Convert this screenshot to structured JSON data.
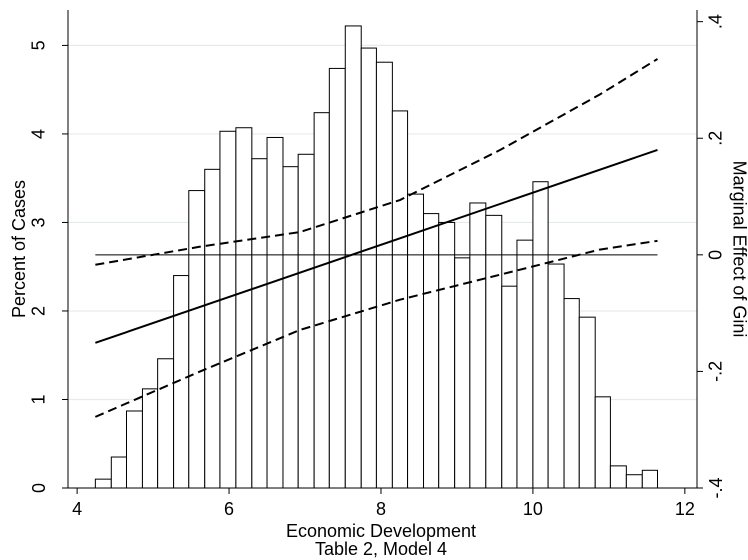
{
  "chart_data": {
    "type": "histogram",
    "xlabel": "Economic Development",
    "note": "Table 2, Model 4",
    "ylabel": "Percent of Cases",
    "y2label": "Marginal Effect of Gini",
    "bins": [
      4.24,
      4.45,
      4.65,
      4.86,
      5.06,
      5.27,
      5.47,
      5.68,
      5.88,
      6.09,
      6.3,
      6.5,
      6.71,
      6.91,
      7.12,
      7.32,
      7.53,
      7.74,
      7.94,
      8.15,
      8.35,
      8.56,
      8.76,
      8.97,
      9.17,
      9.38,
      9.59,
      9.79,
      10.0,
      10.2,
      10.41,
      10.61,
      10.82,
      11.02,
      11.23,
      11.44,
      11.64
    ],
    "values": [
      0.1,
      0.35,
      0.87,
      1.12,
      1.46,
      2.4,
      3.36,
      3.6,
      4.03,
      4.07,
      3.72,
      3.96,
      3.63,
      3.77,
      4.24,
      4.74,
      5.22,
      4.97,
      4.81,
      4.26,
      3.32,
      3.1,
      3.0,
      2.6,
      3.22,
      3.08,
      2.28,
      2.8,
      3.46,
      2.53,
      2.14,
      1.93,
      1.03,
      0.25,
      0.15,
      0.2
    ],
    "color": "#ffffff",
    "edgecolor": "#000000",
    "xlim": [
      3.88,
      12.16
    ],
    "xticks": [
      4,
      6,
      8,
      10,
      12
    ],
    "ylim": [
      0,
      5.4
    ],
    "yticks": [
      0,
      1,
      2,
      3,
      4,
      5
    ],
    "y2lim": [
      -0.4,
      0.42
    ],
    "y2ticks": [
      {
        "value": 0.4,
        "label": ".4"
      },
      {
        "value": 0.2,
        "label": ".2"
      },
      {
        "value": 0,
        "label": "0"
      },
      {
        "value": -0.2,
        "label": "-.2"
      },
      {
        "value": -0.4,
        "label": "-.4"
      }
    ],
    "grid": true,
    "hline": {
      "value": 0,
      "axis": "y2",
      "from": 4.24,
      "to": 11.64
    },
    "lines": [
      {
        "x": [
          4.24,
          11.64
        ],
        "values": [
          -0.151,
          0.18
        ],
        "style": "solid",
        "axis": "y2",
        "color": "#000000"
      },
      {
        "x": [
          4.24,
          5.62,
          6.93,
          8.25,
          9.57,
          10.88,
          11.64
        ],
        "values": [
          -0.017,
          0.014,
          0.039,
          0.094,
          0.18,
          0.275,
          0.336
        ],
        "style": "dashed",
        "axis": "y2",
        "color": "#000000"
      },
      {
        "x": [
          4.24,
          5.62,
          6.93,
          8.25,
          9.57,
          10.88,
          11.64
        ],
        "values": [
          -0.278,
          -0.2,
          -0.129,
          -0.077,
          -0.034,
          0.009,
          0.024
        ],
        "style": "dashed",
        "axis": "y2",
        "color": "#000000"
      }
    ]
  }
}
